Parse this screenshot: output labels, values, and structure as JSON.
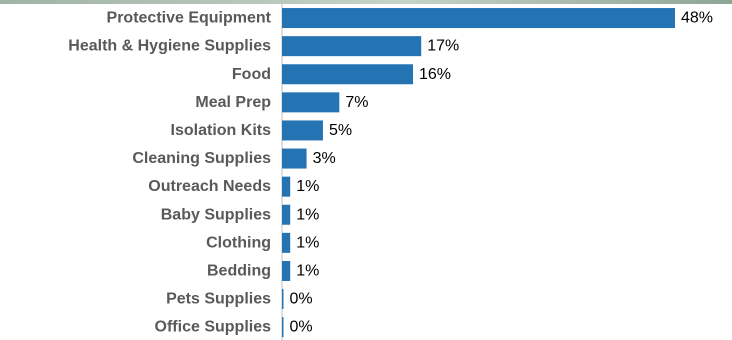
{
  "colors": {
    "bar": "#2474b4",
    "category_text": "#595959",
    "value_text": "#000000",
    "top_strip": "#b7c7bb"
  },
  "chart_data": {
    "type": "bar",
    "orientation": "horizontal",
    "title": "",
    "xlabel": "",
    "ylabel": "",
    "categories": [
      "Protective Equipment",
      "Health & Hygiene Supplies",
      "Food",
      "Meal Prep",
      "Isolation Kits",
      "Cleaning Supplies",
      "Outreach Needs",
      "Baby Supplies",
      "Clothing",
      "Bedding",
      "Pets Supplies",
      "Office Supplies"
    ],
    "values": [
      48,
      17,
      16,
      7,
      5,
      3,
      1,
      1,
      1,
      1,
      0,
      0
    ],
    "value_labels": [
      "48%",
      "17%",
      "16%",
      "7%",
      "5%",
      "3%",
      "1%",
      "1%",
      "1%",
      "1%",
      "0%",
      "0%"
    ],
    "value_unit": "%",
    "xlim": [
      0,
      48
    ],
    "grid": false,
    "legend": "none"
  }
}
